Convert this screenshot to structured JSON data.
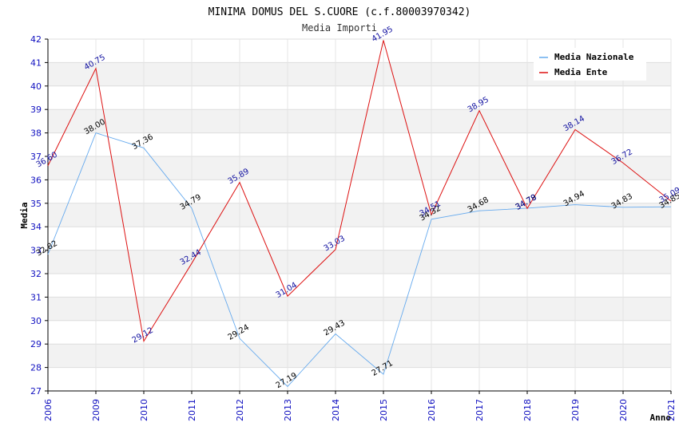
{
  "chart_data": {
    "type": "line",
    "title": "MINIMA DOMUS DEL S.CUORE (c.f.80003970342)",
    "subtitle": "Media Importi",
    "xlabel": "Anno",
    "ylabel": "Media",
    "categories": [
      "2006",
      "2009",
      "2010",
      "2011",
      "2012",
      "2013",
      "2014",
      "2015",
      "2016",
      "2017",
      "2018",
      "2019",
      "2020",
      "2021"
    ],
    "ylim": [
      27,
      42
    ],
    "yticks": [
      "27",
      "28",
      "29",
      "30",
      "31",
      "32",
      "33",
      "34",
      "35",
      "36",
      "37",
      "38",
      "39",
      "40",
      "41",
      "42"
    ],
    "grid": "horizontal alternating bands",
    "legend_position": "top-right",
    "series": [
      {
        "name": "Media Nazionale",
        "color": "#66aaee",
        "values": [
          32.82,
          38.0,
          37.36,
          34.79,
          29.24,
          27.19,
          29.43,
          27.71,
          34.32,
          34.68,
          34.79,
          34.94,
          34.83,
          34.85
        ],
        "labels": [
          "32.82",
          "38.00",
          "37.36",
          "34.79",
          "29.24",
          "27.19",
          "29.43",
          "27.71",
          "34.32",
          "34.68",
          "34.79",
          "34.94",
          "34.83",
          "34.85"
        ]
      },
      {
        "name": "Media Ente",
        "color": "#dd1111",
        "values": [
          36.6,
          40.75,
          29.12,
          32.44,
          35.89,
          31.04,
          33.03,
          41.95,
          34.51,
          38.95,
          34.78,
          38.14,
          36.72,
          35.09
        ],
        "labels": [
          "36.60",
          "40.75",
          "29.12",
          "32.44",
          "35.89",
          "31.04",
          "33.03",
          "41.95",
          "34.51",
          "38.95",
          "34.78",
          "38.14",
          "36.72",
          "35.09"
        ]
      }
    ]
  }
}
